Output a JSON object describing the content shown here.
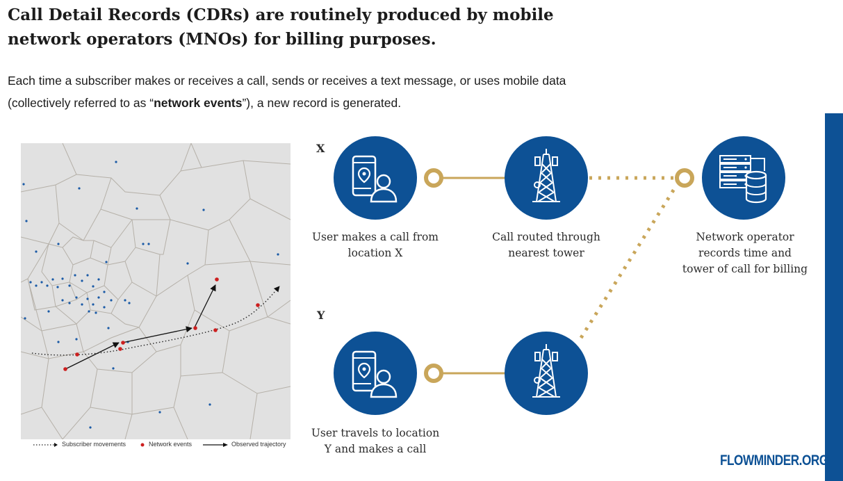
{
  "headline": {
    "line1": "Call Detail Records (CDRs) are routinely produced by mobile",
    "line2": "network operators (MNOs) for billing purposes."
  },
  "intro": {
    "line1": "Each time a subscriber makes or receives a call, sends or receives a text message, or uses mobile data",
    "line2_prefix": "(collectively referred to as “",
    "line2_bold": "network events",
    "line2_suffix": "”), a new record is generated."
  },
  "map_legend": {
    "movements": "Subscriber movements",
    "events": "Network events",
    "trajectory": "Observed trajectory"
  },
  "diagram": {
    "label_x": "X",
    "label_y": "Y",
    "step_call_line1": "User makes a call from",
    "step_call_line2": "location X",
    "step_tower_line1": "Call routed through",
    "step_tower_line2": "nearest tower",
    "step_operator_line1": "Network operator",
    "step_operator_line2": "records time and",
    "step_operator_line3": "tower of call for billing",
    "step_travel_line1": "User travels to location",
    "step_travel_line2": "Y and makes a call"
  },
  "brand": "FLOWMINDER.ORG",
  "colors": {
    "brand_blue": "#0d5195",
    "gold": "#c9a65a",
    "event_red": "#cc1f1f",
    "tower_blue": "#1560a8",
    "map_bg": "#e1e1e1",
    "map_lines": "#b5b0a8"
  },
  "icons": {
    "phone_user": "phone-user-icon",
    "tower": "cell-tower-icon",
    "database": "database-server-icon"
  }
}
